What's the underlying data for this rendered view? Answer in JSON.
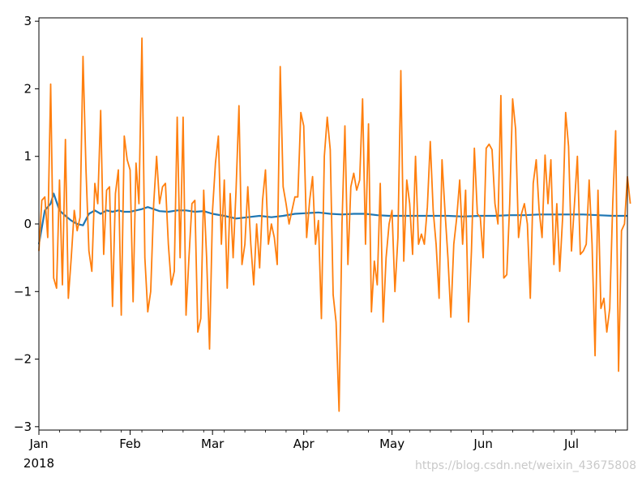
{
  "watermark": "https://blog.csdn.net/weixin_43675808",
  "colors": {
    "series_1": "#1f77b4",
    "series_2": "#ff7f0e",
    "axis": "#000000",
    "background": "#ffffff"
  },
  "chart_data": {
    "type": "line",
    "title": "",
    "xlabel": "",
    "ylabel": "",
    "x_start": "2018-01-01",
    "x_end": "2018-07-20",
    "xlim": [
      "2018-01-01",
      "2018-07-20"
    ],
    "ylim": [
      -3.05,
      3.05
    ],
    "grid": false,
    "legend": "none",
    "x_ticks": [
      {
        "date": "2018-01-01",
        "label": "Jan"
      },
      {
        "date": "2018-02-01",
        "label": "Feb"
      },
      {
        "date": "2018-03-01",
        "label": "Mar"
      },
      {
        "date": "2018-04-01",
        "label": "Apr"
      },
      {
        "date": "2018-05-01",
        "label": "May"
      },
      {
        "date": "2018-06-01",
        "label": "Jun"
      },
      {
        "date": "2018-07-01",
        "label": "Jul"
      }
    ],
    "x_year_label": "2018",
    "y_ticks": [
      {
        "value": -3,
        "label": "−3"
      },
      {
        "value": -2,
        "label": "−2"
      },
      {
        "value": -1,
        "label": "−1"
      },
      {
        "value": 0,
        "label": "0"
      },
      {
        "value": 1,
        "label": "1"
      },
      {
        "value": 2,
        "label": "2"
      },
      {
        "value": 3,
        "label": "3"
      }
    ],
    "series": [
      {
        "color": "#1f77b4",
        "points": [
          [
            "2018-01-01",
            -0.3
          ],
          [
            "2018-01-03",
            0.2
          ],
          [
            "2018-01-05",
            0.3
          ],
          [
            "2018-01-06",
            0.45
          ],
          [
            "2018-01-08",
            0.2
          ],
          [
            "2018-01-10",
            0.12
          ],
          [
            "2018-01-12",
            0.05
          ],
          [
            "2018-01-14",
            0.0
          ],
          [
            "2018-01-16",
            -0.02
          ],
          [
            "2018-01-18",
            0.15
          ],
          [
            "2018-01-20",
            0.2
          ],
          [
            "2018-01-22",
            0.15
          ],
          [
            "2018-01-24",
            0.2
          ],
          [
            "2018-01-26",
            0.18
          ],
          [
            "2018-01-28",
            0.2
          ],
          [
            "2018-01-30",
            0.18
          ],
          [
            "2018-02-01",
            0.18
          ],
          [
            "2018-02-03",
            0.2
          ],
          [
            "2018-02-05",
            0.22
          ],
          [
            "2018-02-07",
            0.25
          ],
          [
            "2018-02-09",
            0.22
          ],
          [
            "2018-02-11",
            0.19
          ],
          [
            "2018-02-14",
            0.18
          ],
          [
            "2018-02-17",
            0.2
          ],
          [
            "2018-02-20",
            0.2
          ],
          [
            "2018-02-23",
            0.18
          ],
          [
            "2018-02-26",
            0.19
          ],
          [
            "2018-03-01",
            0.15
          ],
          [
            "2018-03-05",
            0.12
          ],
          [
            "2018-03-09",
            0.08
          ],
          [
            "2018-03-13",
            0.1
          ],
          [
            "2018-03-17",
            0.12
          ],
          [
            "2018-03-21",
            0.1
          ],
          [
            "2018-03-25",
            0.12
          ],
          [
            "2018-03-29",
            0.15
          ],
          [
            "2018-04-02",
            0.16
          ],
          [
            "2018-04-06",
            0.17
          ],
          [
            "2018-04-10",
            0.15
          ],
          [
            "2018-04-14",
            0.14
          ],
          [
            "2018-04-18",
            0.15
          ],
          [
            "2018-04-22",
            0.15
          ],
          [
            "2018-04-26",
            0.13
          ],
          [
            "2018-04-30",
            0.12
          ],
          [
            "2018-05-05",
            0.12
          ],
          [
            "2018-05-10",
            0.12
          ],
          [
            "2018-05-15",
            0.12
          ],
          [
            "2018-05-20",
            0.12
          ],
          [
            "2018-05-25",
            0.11
          ],
          [
            "2018-05-31",
            0.12
          ],
          [
            "2018-06-05",
            0.12
          ],
          [
            "2018-06-10",
            0.13
          ],
          [
            "2018-06-15",
            0.13
          ],
          [
            "2018-06-20",
            0.14
          ],
          [
            "2018-06-25",
            0.14
          ],
          [
            "2018-06-30",
            0.14
          ],
          [
            "2018-07-05",
            0.14
          ],
          [
            "2018-07-10",
            0.13
          ],
          [
            "2018-07-15",
            0.12
          ],
          [
            "2018-07-20",
            0.12
          ]
        ]
      },
      {
        "color": "#ff7f0e",
        "points": [
          [
            "2018-01-01",
            -0.4
          ],
          [
            "2018-01-02",
            0.35
          ],
          [
            "2018-01-03",
            0.4
          ],
          [
            "2018-01-04",
            -0.2
          ],
          [
            "2018-01-05",
            2.07
          ],
          [
            "2018-01-06",
            -0.8
          ],
          [
            "2018-01-07",
            -0.95
          ],
          [
            "2018-01-08",
            0.65
          ],
          [
            "2018-01-09",
            -0.9
          ],
          [
            "2018-01-10",
            1.25
          ],
          [
            "2018-01-11",
            -1.1
          ],
          [
            "2018-01-12",
            -0.5
          ],
          [
            "2018-01-13",
            0.2
          ],
          [
            "2018-01-14",
            -0.1
          ],
          [
            "2018-01-15",
            0.1
          ],
          [
            "2018-01-16",
            2.48
          ],
          [
            "2018-01-17",
            0.8
          ],
          [
            "2018-01-18",
            -0.4
          ],
          [
            "2018-01-19",
            -0.7
          ],
          [
            "2018-01-20",
            0.6
          ],
          [
            "2018-01-21",
            0.3
          ],
          [
            "2018-01-22",
            1.68
          ],
          [
            "2018-01-23",
            -0.45
          ],
          [
            "2018-01-24",
            0.5
          ],
          [
            "2018-01-25",
            0.55
          ],
          [
            "2018-01-26",
            -1.22
          ],
          [
            "2018-01-27",
            0.45
          ],
          [
            "2018-01-28",
            0.8
          ],
          [
            "2018-01-29",
            -1.35
          ],
          [
            "2018-01-30",
            1.3
          ],
          [
            "2018-01-31",
            0.95
          ],
          [
            "2018-02-01",
            0.8
          ],
          [
            "2018-02-02",
            -1.15
          ],
          [
            "2018-02-03",
            0.9
          ],
          [
            "2018-02-04",
            0.3
          ],
          [
            "2018-02-05",
            2.75
          ],
          [
            "2018-02-06",
            -0.5
          ],
          [
            "2018-02-07",
            -1.3
          ],
          [
            "2018-02-08",
            -1.0
          ],
          [
            "2018-02-09",
            0.3
          ],
          [
            "2018-02-10",
            1.0
          ],
          [
            "2018-02-11",
            0.3
          ],
          [
            "2018-02-12",
            0.55
          ],
          [
            "2018-02-13",
            0.6
          ],
          [
            "2018-02-14",
            -0.3
          ],
          [
            "2018-02-15",
            -0.9
          ],
          [
            "2018-02-16",
            -0.7
          ],
          [
            "2018-02-17",
            1.58
          ],
          [
            "2018-02-18",
            -0.5
          ],
          [
            "2018-02-19",
            1.58
          ],
          [
            "2018-02-20",
            -1.35
          ],
          [
            "2018-02-21",
            -0.5
          ],
          [
            "2018-02-22",
            0.3
          ],
          [
            "2018-02-23",
            0.35
          ],
          [
            "2018-02-24",
            -1.6
          ],
          [
            "2018-02-25",
            -1.4
          ],
          [
            "2018-02-26",
            0.5
          ],
          [
            "2018-02-27",
            -0.5
          ],
          [
            "2018-02-28",
            -1.85
          ],
          [
            "2018-03-01",
            0.2
          ],
          [
            "2018-03-02",
            0.9
          ],
          [
            "2018-03-03",
            1.3
          ],
          [
            "2018-03-04",
            -0.3
          ],
          [
            "2018-03-05",
            0.65
          ],
          [
            "2018-03-06",
            -0.95
          ],
          [
            "2018-03-07",
            0.45
          ],
          [
            "2018-03-08",
            -0.5
          ],
          [
            "2018-03-09",
            0.5
          ],
          [
            "2018-03-10",
            1.75
          ],
          [
            "2018-03-11",
            -0.6
          ],
          [
            "2018-03-12",
            -0.3
          ],
          [
            "2018-03-13",
            0.55
          ],
          [
            "2018-03-14",
            -0.3
          ],
          [
            "2018-03-15",
            -0.9
          ],
          [
            "2018-03-16",
            0.0
          ],
          [
            "2018-03-17",
            -0.65
          ],
          [
            "2018-03-18",
            0.35
          ],
          [
            "2018-03-19",
            0.8
          ],
          [
            "2018-03-20",
            -0.3
          ],
          [
            "2018-03-21",
            0.0
          ],
          [
            "2018-03-22",
            -0.2
          ],
          [
            "2018-03-23",
            -0.6
          ],
          [
            "2018-03-24",
            2.33
          ],
          [
            "2018-03-25",
            0.55
          ],
          [
            "2018-03-26",
            0.3
          ],
          [
            "2018-03-27",
            0.0
          ],
          [
            "2018-03-28",
            0.2
          ],
          [
            "2018-03-29",
            0.4
          ],
          [
            "2018-03-30",
            0.4
          ],
          [
            "2018-03-31",
            1.65
          ],
          [
            "2018-04-01",
            1.45
          ],
          [
            "2018-04-02",
            -0.2
          ],
          [
            "2018-04-03",
            0.35
          ],
          [
            "2018-04-04",
            0.7
          ],
          [
            "2018-04-05",
            -0.3
          ],
          [
            "2018-04-06",
            0.05
          ],
          [
            "2018-04-07",
            -1.4
          ],
          [
            "2018-04-08",
            1.0
          ],
          [
            "2018-04-09",
            1.58
          ],
          [
            "2018-04-10",
            1.1
          ],
          [
            "2018-04-11",
            -1.05
          ],
          [
            "2018-04-12",
            -1.45
          ],
          [
            "2018-04-13",
            -2.77
          ],
          [
            "2018-04-14",
            0.0
          ],
          [
            "2018-04-15",
            1.45
          ],
          [
            "2018-04-16",
            -0.6
          ],
          [
            "2018-04-17",
            0.55
          ],
          [
            "2018-04-18",
            0.75
          ],
          [
            "2018-04-19",
            0.5
          ],
          [
            "2018-04-20",
            0.65
          ],
          [
            "2018-04-21",
            1.85
          ],
          [
            "2018-04-22",
            -0.3
          ],
          [
            "2018-04-23",
            1.48
          ],
          [
            "2018-04-24",
            -1.3
          ],
          [
            "2018-04-25",
            -0.55
          ],
          [
            "2018-04-26",
            -0.9
          ],
          [
            "2018-04-27",
            0.6
          ],
          [
            "2018-04-28",
            -1.45
          ],
          [
            "2018-04-29",
            -0.5
          ],
          [
            "2018-04-30",
            0.0
          ],
          [
            "2018-05-01",
            0.2
          ],
          [
            "2018-05-02",
            -1.0
          ],
          [
            "2018-05-03",
            -0.2
          ],
          [
            "2018-05-04",
            2.27
          ],
          [
            "2018-05-05",
            -0.55
          ],
          [
            "2018-05-06",
            0.65
          ],
          [
            "2018-05-07",
            0.3
          ],
          [
            "2018-05-08",
            -0.45
          ],
          [
            "2018-05-09",
            1.0
          ],
          [
            "2018-05-10",
            -0.3
          ],
          [
            "2018-05-11",
            -0.15
          ],
          [
            "2018-05-12",
            -0.3
          ],
          [
            "2018-05-13",
            0.25
          ],
          [
            "2018-05-14",
            1.22
          ],
          [
            "2018-05-15",
            0.2
          ],
          [
            "2018-05-16",
            -0.3
          ],
          [
            "2018-05-17",
            -1.1
          ],
          [
            "2018-05-18",
            0.95
          ],
          [
            "2018-05-19",
            0.2
          ],
          [
            "2018-05-20",
            -0.5
          ],
          [
            "2018-05-21",
            -1.38
          ],
          [
            "2018-05-22",
            -0.3
          ],
          [
            "2018-05-23",
            0.1
          ],
          [
            "2018-05-24",
            0.65
          ],
          [
            "2018-05-25",
            -0.3
          ],
          [
            "2018-05-26",
            0.5
          ],
          [
            "2018-05-27",
            -1.45
          ],
          [
            "2018-05-28",
            -0.4
          ],
          [
            "2018-05-29",
            1.12
          ],
          [
            "2018-05-30",
            0.15
          ],
          [
            "2018-05-31",
            0.1
          ],
          [
            "2018-06-01",
            -0.5
          ],
          [
            "2018-06-02",
            1.12
          ],
          [
            "2018-06-03",
            1.18
          ],
          [
            "2018-06-04",
            1.1
          ],
          [
            "2018-06-05",
            0.3
          ],
          [
            "2018-06-06",
            0.0
          ],
          [
            "2018-06-07",
            1.9
          ],
          [
            "2018-06-08",
            -0.8
          ],
          [
            "2018-06-09",
            -0.75
          ],
          [
            "2018-06-10",
            0.3
          ],
          [
            "2018-06-11",
            1.85
          ],
          [
            "2018-06-12",
            1.4
          ],
          [
            "2018-06-13",
            -0.2
          ],
          [
            "2018-06-14",
            0.15
          ],
          [
            "2018-06-15",
            0.3
          ],
          [
            "2018-06-16",
            0.0
          ],
          [
            "2018-06-17",
            -1.1
          ],
          [
            "2018-06-18",
            0.6
          ],
          [
            "2018-06-19",
            0.95
          ],
          [
            "2018-06-20",
            0.2
          ],
          [
            "2018-06-21",
            -0.2
          ],
          [
            "2018-06-22",
            1.02
          ],
          [
            "2018-06-23",
            0.3
          ],
          [
            "2018-06-24",
            0.95
          ],
          [
            "2018-06-25",
            -0.6
          ],
          [
            "2018-06-26",
            0.3
          ],
          [
            "2018-06-27",
            -0.7
          ],
          [
            "2018-06-28",
            0.1
          ],
          [
            "2018-06-29",
            1.65
          ],
          [
            "2018-06-30",
            1.15
          ],
          [
            "2018-07-01",
            -0.4
          ],
          [
            "2018-07-02",
            0.3
          ],
          [
            "2018-07-03",
            1.0
          ],
          [
            "2018-07-04",
            -0.45
          ],
          [
            "2018-07-05",
            -0.4
          ],
          [
            "2018-07-06",
            -0.3
          ],
          [
            "2018-07-07",
            0.65
          ],
          [
            "2018-07-08",
            -0.3
          ],
          [
            "2018-07-09",
            -1.95
          ],
          [
            "2018-07-10",
            0.5
          ],
          [
            "2018-07-11",
            -1.25
          ],
          [
            "2018-07-12",
            -1.1
          ],
          [
            "2018-07-13",
            -1.6
          ],
          [
            "2018-07-14",
            -1.25
          ],
          [
            "2018-07-15",
            0.3
          ],
          [
            "2018-07-16",
            1.38
          ],
          [
            "2018-07-17",
            -2.18
          ],
          [
            "2018-07-18",
            -0.1
          ],
          [
            "2018-07-19",
            0.0
          ],
          [
            "2018-07-20",
            0.7
          ],
          [
            "2018-07-21",
            0.3
          ]
        ]
      }
    ]
  }
}
